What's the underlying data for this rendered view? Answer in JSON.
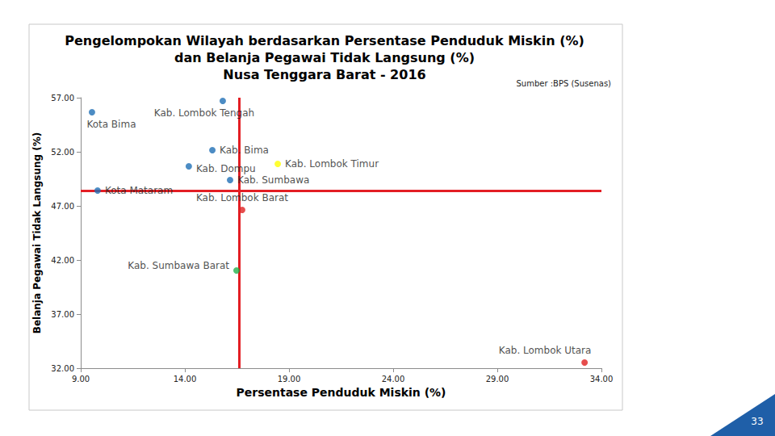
{
  "chart_data": {
    "type": "scatter",
    "title": "Pengelompokan Wilayah berdasarkan Persentase Penduduk Miskin (%)\ndan Belanja Pegawai Tidak Langsung (%)\nNusa Tenggara Barat - 2016",
    "source": "Sumber :BPS (Susenas)",
    "x_label": "Persentase Penduduk Miskin (%)",
    "y_label": "Belanja Pegawai Tidak Langsung (%)",
    "labels": [
      "Kota Bima",
      "Kab. Lombok Tengah",
      "Kab. Bima",
      "Kab. Dompu",
      "Kab. Lombok Timur",
      "Kab. Sumbawa",
      "Kota Mataram",
      "Kab. Lombok Barat",
      "Kab. Sumbawa Barat",
      "Kab. Lombok Utara"
    ],
    "x": [
      9.54,
      15.82,
      15.32,
      14.19,
      18.46,
      16.17,
      9.81,
      16.75,
      16.48,
      33.19
    ],
    "values": [
      55.66,
      56.7,
      52.15,
      50.66,
      50.88,
      49.39,
      48.42,
      46.63,
      41.03,
      32.52
    ],
    "colors": [
      "#1f6fb5",
      "#1f6fb5",
      "#1f6fb5",
      "#1f6fb5",
      "#ffff00",
      "#1f6fb5",
      "#1f6fb5",
      "#e02020",
      "#22b24c",
      "#e02020"
    ],
    "marker": "circle",
    "reference_lines": {
      "x": 16.6,
      "y": 48.42
    },
    "reference_color": "#e31e24",
    "xlim": [
      9,
      34
    ],
    "ylim": [
      32,
      57
    ],
    "xticks": [
      {
        "value": 9,
        "label": "9.00"
      },
      {
        "value": 14,
        "label": "14.00"
      },
      {
        "value": 19,
        "label": "19.00"
      },
      {
        "value": 24,
        "label": "24.00"
      },
      {
        "value": 29,
        "label": "29.00"
      },
      {
        "value": 34,
        "label": "34.00"
      }
    ],
    "yticks": [
      {
        "value": 32,
        "label": "32.00"
      },
      {
        "value": 37,
        "label": "37.00"
      },
      {
        "value": 42,
        "label": "42.00"
      },
      {
        "value": 47,
        "label": "47.00"
      },
      {
        "value": 52,
        "label": "52.00"
      },
      {
        "value": 57,
        "label": "57.00"
      }
    ],
    "grid": false,
    "page_number": "33"
  }
}
